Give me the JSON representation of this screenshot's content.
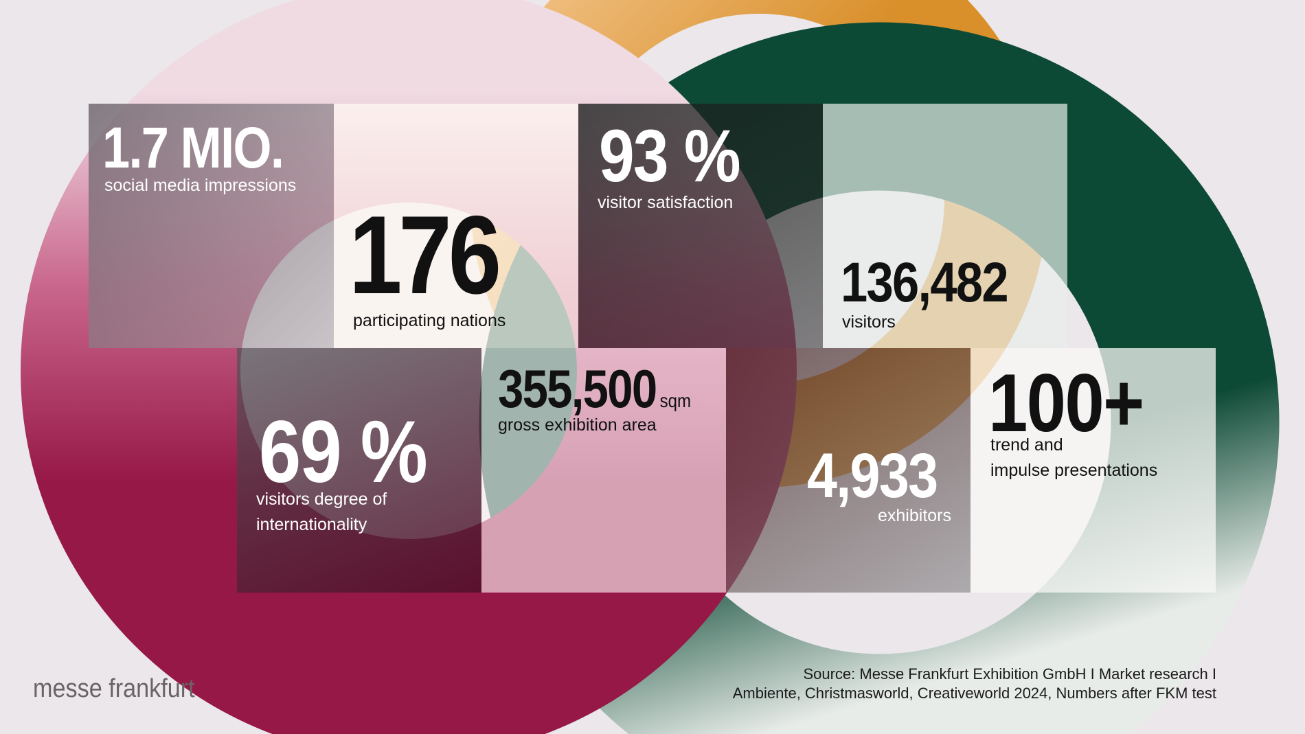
{
  "colors": {
    "background": "#ebe7eb",
    "orange": "#d98f2a",
    "green": "#0d4a35",
    "crimson": "#961846",
    "text_dark": "#111111",
    "text_light": "#ffffff",
    "logo_gray": "#6a6366"
  },
  "stats": {
    "social": {
      "value": "1.7 MIO.",
      "label": "social media impressions"
    },
    "nations": {
      "value": "176",
      "label": "participating nations"
    },
    "satisfaction": {
      "value": "93 %",
      "label": "visitor satisfaction"
    },
    "visitors": {
      "value": "136,482",
      "label": "visitors"
    },
    "international": {
      "value": "69 %",
      "label_line1": "visitors degree of",
      "label_line2": "internationality"
    },
    "area": {
      "value": "355,500",
      "unit": "sqm",
      "label": "gross exhibition area"
    },
    "exhibitors": {
      "value": "4,933",
      "label": "exhibitors"
    },
    "presentations": {
      "value": "100+",
      "label_line1": "trend and",
      "label_line2": "impulse presentations"
    }
  },
  "footer": {
    "logo": "messe frankfurt",
    "source_line1": "Source: Messe Frankfurt Exhibition GmbH I Market research I",
    "source_line2": "Ambiente, Christmasworld, Creativeworld 2024, Numbers after FKM test"
  }
}
